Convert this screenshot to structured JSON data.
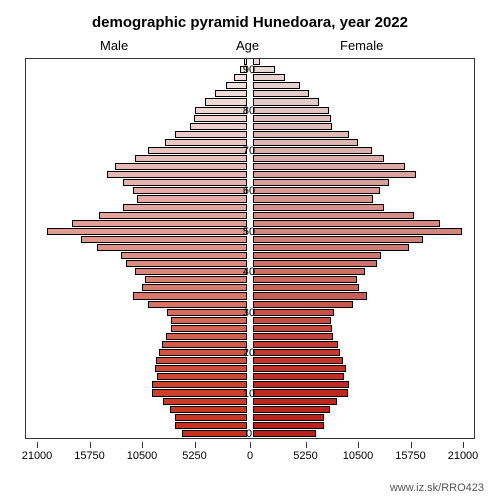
{
  "title": "demographic pyramid Hunedoara, year 2022",
  "labels": {
    "male": "Male",
    "female": "Female",
    "age": "Age"
  },
  "credit": "www.iz.sk/RRO423",
  "chart": {
    "type": "population-pyramid",
    "title_fontsize": 15,
    "label_fontsize": 13,
    "tick_fontsize": 11,
    "background_color": "#ffffff",
    "bar_border_color": "#000000",
    "axis_color": "#333333",
    "x_axis": {
      "min": 0,
      "max": 21000,
      "ticks": [
        21000,
        15750,
        10500,
        5250,
        0,
        5250,
        10500,
        15750,
        21000
      ]
    },
    "age_ticks": [
      0,
      10,
      20,
      30,
      40,
      50,
      60,
      70,
      80,
      90
    ],
    "rows": [
      {
        "age": 92,
        "male": 300,
        "female": 700,
        "male_color": "#f5eae9",
        "female_color": "#e9dcdb"
      },
      {
        "age": 90,
        "male": 700,
        "female": 2200,
        "male_color": "#f4e6e4",
        "female_color": "#e8d8d6"
      },
      {
        "age": 88,
        "male": 1300,
        "female": 3200,
        "male_color": "#f3e3e1",
        "female_color": "#e7d4d2"
      },
      {
        "age": 86,
        "male": 2100,
        "female": 4700,
        "male_color": "#f2e0dd",
        "female_color": "#e6d0ce"
      },
      {
        "age": 84,
        "male": 3200,
        "female": 5600,
        "male_color": "#f1dcd9",
        "female_color": "#e4cccb"
      },
      {
        "age": 82,
        "male": 4200,
        "female": 6600,
        "male_color": "#f0d9d6",
        "female_color": "#e3c9c7"
      },
      {
        "age": 80,
        "male": 5200,
        "female": 7600,
        "male_color": "#efd6d3",
        "female_color": "#e2c5c3"
      },
      {
        "age": 78,
        "male": 5300,
        "female": 7800,
        "male_color": "#eed3d0",
        "female_color": "#e1c2c0"
      },
      {
        "age": 76,
        "male": 5700,
        "female": 7900,
        "male_color": "#edcfcc",
        "female_color": "#e0bebb"
      },
      {
        "age": 74,
        "male": 7200,
        "female": 9600,
        "male_color": "#eccbc8",
        "female_color": "#deb9b6"
      },
      {
        "age": 72,
        "male": 8200,
        "female": 10500,
        "male_color": "#ebc7c4",
        "female_color": "#ddb5b2"
      },
      {
        "age": 70,
        "male": 9900,
        "female": 11900,
        "male_color": "#eac3c0",
        "female_color": "#dcb1ad"
      },
      {
        "age": 68,
        "male": 11200,
        "female": 13100,
        "male_color": "#e9bfbb",
        "female_color": "#dbada9"
      },
      {
        "age": 66,
        "male": 13200,
        "female": 15200,
        "male_color": "#e8bbb7",
        "female_color": "#daa8a5"
      },
      {
        "age": 64,
        "male": 14000,
        "female": 16300,
        "male_color": "#e7b7b3",
        "female_color": "#d9a4a0"
      },
      {
        "age": 62,
        "male": 12400,
        "female": 13600,
        "male_color": "#e6b3ae",
        "female_color": "#d8a09b"
      },
      {
        "age": 60,
        "male": 11400,
        "female": 12700,
        "male_color": "#e5afa9",
        "female_color": "#d79b96"
      },
      {
        "age": 58,
        "male": 11000,
        "female": 12000,
        "male_color": "#e4aba5",
        "female_color": "#d69791"
      },
      {
        "age": 56,
        "male": 12400,
        "female": 13100,
        "male_color": "#e3a7a0",
        "female_color": "#d5928c"
      },
      {
        "age": 54,
        "male": 14800,
        "female": 16100,
        "male_color": "#e2a39b",
        "female_color": "#d48e87"
      },
      {
        "age": 52,
        "male": 17500,
        "female": 18700,
        "male_color": "#e19f96",
        "female_color": "#d38982"
      },
      {
        "age": 50,
        "male": 20000,
        "female": 20900,
        "male_color": "#e09b92",
        "female_color": "#d2857d"
      },
      {
        "age": 48,
        "male": 16600,
        "female": 17000,
        "male_color": "#df978d",
        "female_color": "#d18078"
      },
      {
        "age": 46,
        "male": 15000,
        "female": 15600,
        "male_color": "#de9289",
        "female_color": "#d07c73"
      },
      {
        "age": 44,
        "male": 12600,
        "female": 12800,
        "male_color": "#dd8e84",
        "female_color": "#cf776e"
      },
      {
        "age": 42,
        "male": 12100,
        "female": 12400,
        "male_color": "#dc8a7f",
        "female_color": "#ce7269"
      },
      {
        "age": 40,
        "male": 11200,
        "female": 11200,
        "male_color": "#db857a",
        "female_color": "#cd6d63"
      },
      {
        "age": 38,
        "male": 10200,
        "female": 10400,
        "male_color": "#da8175",
        "female_color": "#cc685e"
      },
      {
        "age": 36,
        "male": 10500,
        "female": 10600,
        "male_color": "#d97c6f",
        "female_color": "#cb6258"
      },
      {
        "age": 34,
        "male": 11400,
        "female": 11400,
        "male_color": "#d87769",
        "female_color": "#ca5d53"
      },
      {
        "age": 32,
        "male": 9900,
        "female": 10000,
        "male_color": "#d77264",
        "female_color": "#c9574d"
      },
      {
        "age": 30,
        "male": 8000,
        "female": 8100,
        "male_color": "#d66d5e",
        "female_color": "#c85248"
      },
      {
        "age": 28,
        "male": 7600,
        "female": 7800,
        "male_color": "#d56858",
        "female_color": "#c74d42"
      },
      {
        "age": 26,
        "male": 7600,
        "female": 7900,
        "male_color": "#d46352",
        "female_color": "#c6483d"
      },
      {
        "age": 24,
        "male": 8100,
        "female": 8000,
        "male_color": "#d35e4c",
        "female_color": "#c54338"
      },
      {
        "age": 22,
        "male": 8500,
        "female": 8500,
        "male_color": "#d25946",
        "female_color": "#c43e33"
      },
      {
        "age": 20,
        "male": 8800,
        "female": 8700,
        "male_color": "#d15440",
        "female_color": "#c33a2f"
      },
      {
        "age": 18,
        "male": 9100,
        "female": 9000,
        "male_color": "#d04f3b",
        "female_color": "#c2362b"
      },
      {
        "age": 16,
        "male": 9200,
        "female": 9300,
        "male_color": "#cf4b36",
        "female_color": "#c13228"
      },
      {
        "age": 14,
        "male": 9000,
        "female": 9100,
        "male_color": "#ce4732",
        "female_color": "#c02e25"
      },
      {
        "age": 12,
        "male": 9500,
        "female": 9600,
        "male_color": "#cd432e",
        "female_color": "#bf2b23"
      },
      {
        "age": 10,
        "male": 9500,
        "female": 9500,
        "male_color": "#cc3f2a",
        "female_color": "#be2821"
      },
      {
        "age": 8,
        "male": 8400,
        "female": 8400,
        "male_color": "#cb3b27",
        "female_color": "#bd2620"
      },
      {
        "age": 6,
        "male": 7700,
        "female": 7700,
        "male_color": "#ca3824",
        "female_color": "#bc241f"
      },
      {
        "age": 4,
        "male": 7200,
        "female": 7100,
        "male_color": "#c93521",
        "female_color": "#bb231f"
      },
      {
        "age": 2,
        "male": 7200,
        "female": 7100,
        "male_color": "#c8321f",
        "female_color": "#ba221f"
      },
      {
        "age": 0,
        "male": 6500,
        "female": 6300,
        "male_color": "#c7301e",
        "female_color": "#b9211f"
      }
    ]
  }
}
